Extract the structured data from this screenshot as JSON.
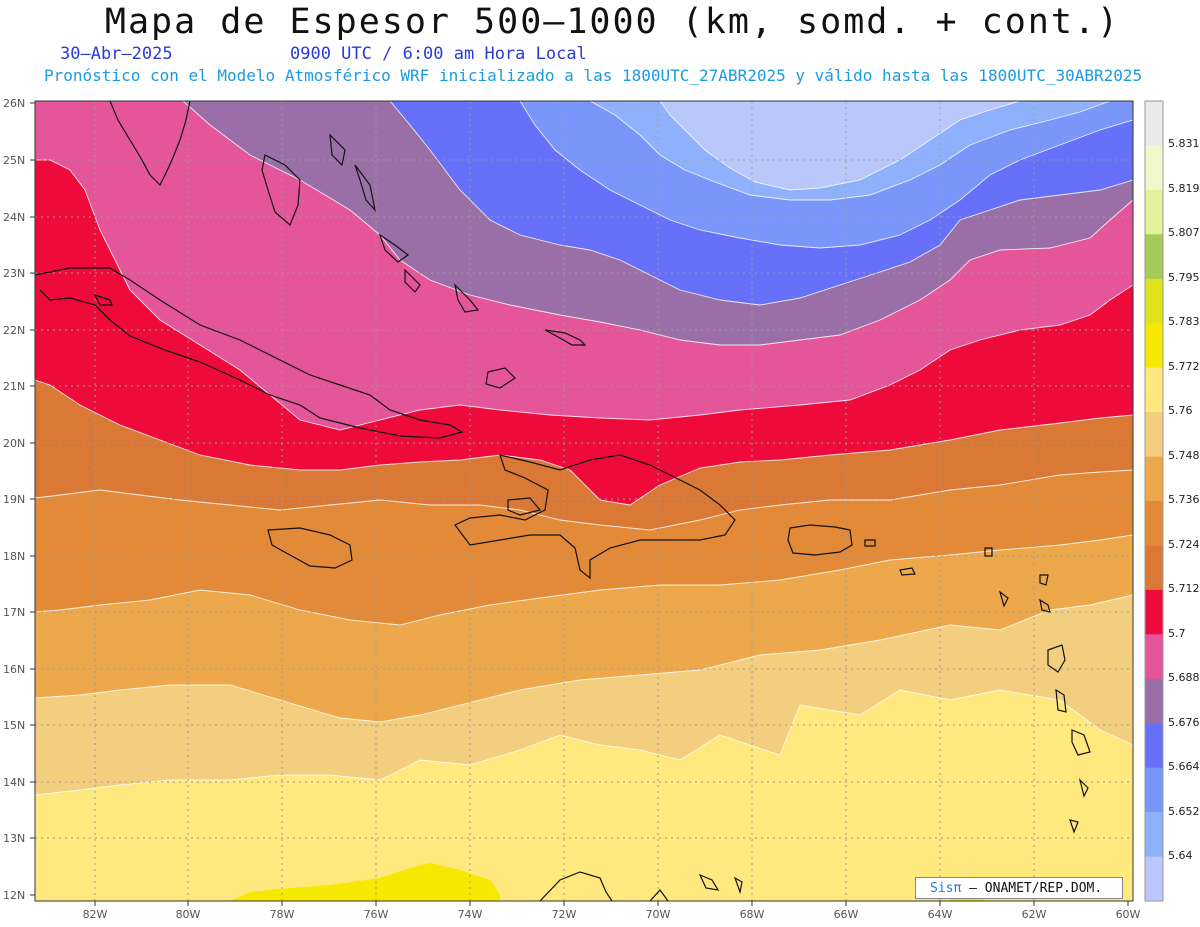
{
  "header": {
    "title": "Mapa de Espesor 500–1000 (km, somd. + cont.)",
    "date": "30–Abr–2025",
    "time": "0900 UTC / 6:00 am Hora Local",
    "model": "Pronóstico con el Modelo Atmosférico WRF inicializado a las 1800UTC_27ABR2025 y válido hasta las  1800UTC_30ABR2025"
  },
  "map": {
    "lat_ticks": [
      "26N",
      "25N",
      "24N",
      "23N",
      "22N",
      "21N",
      "20N",
      "19N",
      "18N",
      "17N",
      "16N",
      "15N",
      "14N",
      "13N",
      "12N"
    ],
    "lon_ticks": [
      "82W",
      "80W",
      "78W",
      "76W",
      "74W",
      "72W",
      "70W",
      "68W",
      "66W",
      "64W",
      "62W",
      "60W"
    ]
  },
  "legend": {
    "labels": [
      "5.831",
      "5.819",
      "5.807",
      "5.795",
      "5.783",
      "5.772",
      "5.76",
      "5.748",
      "5.736",
      "5.724",
      "5.712",
      "5.7",
      "5.688",
      "5.676",
      "5.664",
      "5.652",
      "5.64"
    ],
    "colors": [
      "#eaeaea",
      "#f2f7cc",
      "#e3f29a",
      "#a6ca58",
      "#dfe21d",
      "#f7e800",
      "#ffe87d",
      "#f2ce7e",
      "#eca84a",
      "#e38a38",
      "#da7935",
      "#ef0a3c",
      "#e55599",
      "#9a6fa8",
      "#6670f8",
      "#7a96fa",
      "#8fb0fb",
      "#b9c7fb"
    ]
  },
  "credit": {
    "sis": "Sisπ",
    "text": "– ONAMET/REP.DOM."
  }
}
